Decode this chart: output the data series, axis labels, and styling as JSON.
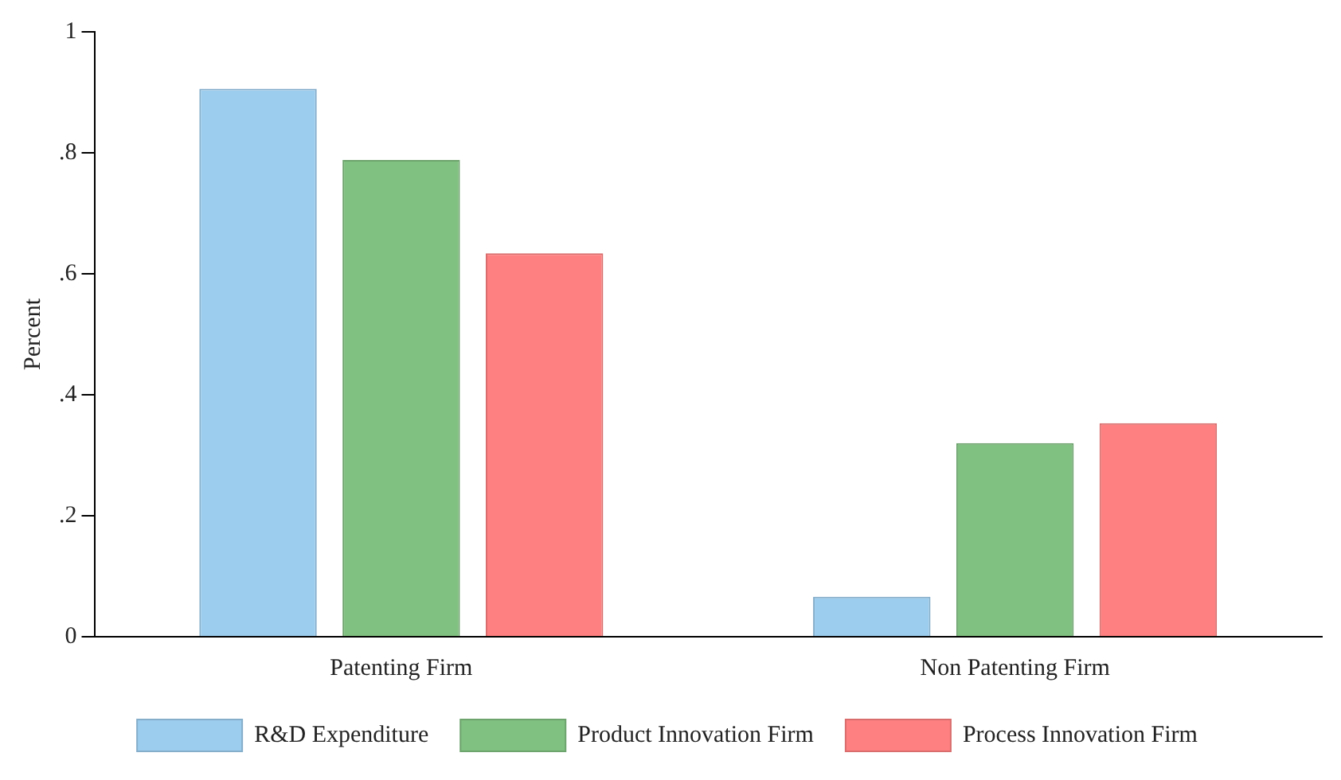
{
  "chart_data": {
    "type": "bar",
    "ylabel": "Percent",
    "categories": [
      "Patenting Firm",
      "Non Patenting Firm"
    ],
    "series": [
      {
        "name": "R&D Expenditure",
        "color": "#9dcdee",
        "values": [
          0.906,
          0.066
        ]
      },
      {
        "name": "Product Innovation Firm",
        "color": "#80c080",
        "values": [
          0.788,
          0.32
        ]
      },
      {
        "name": "Process Innovation Firm",
        "color": "#ff8080",
        "values": [
          0.634,
          0.353
        ]
      }
    ],
    "ylim": [
      0,
      1
    ],
    "yticks": [
      {
        "value": 0,
        "label": "0"
      },
      {
        "value": 0.2,
        "label": ".2"
      },
      {
        "value": 0.4,
        "label": ".4"
      },
      {
        "value": 0.6,
        "label": ".6"
      },
      {
        "value": 0.8,
        "label": ".8"
      },
      {
        "value": 1,
        "label": "1"
      }
    ],
    "grid": false,
    "legend": "bottom"
  }
}
